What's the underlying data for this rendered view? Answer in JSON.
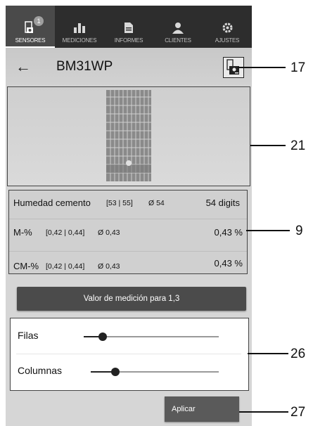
{
  "tabs": [
    {
      "label": "SENSORES",
      "icon": "sensor-icon",
      "badge": "1",
      "active": true
    },
    {
      "label": "MEDICIONES",
      "icon": "bar-chart-icon"
    },
    {
      "label": "INFORMES",
      "icon": "report-icon"
    },
    {
      "label": "CLIENTES",
      "icon": "clients-icon"
    },
    {
      "label": "AJUSTES",
      "icon": "gear-icon"
    }
  ],
  "header": {
    "back_icon": "←",
    "title": "BM31WP",
    "rec_icon": "record-icon"
  },
  "values": {
    "row1": {
      "label": "Humedad cemento",
      "range": "[53 | 55]",
      "avg": "Ø 54",
      "value": "54 digits"
    },
    "row2": {
      "label": "M-%",
      "range": "[0,42 | 0,44]",
      "avg": "Ø 0,43",
      "value": "0,43 %"
    },
    "row3": {
      "label": "CM-%",
      "range": "[0,42 | 0,44]",
      "avg": "Ø 0,43",
      "value": "0,43 %"
    }
  },
  "measure_button": "Valor de medición para 1,3",
  "sliders": {
    "rows": {
      "label": "Filas",
      "level": 0.14
    },
    "columns": {
      "label": "Columnas",
      "level": 0.19
    }
  },
  "apply_button": "Aplicar",
  "callouts": [
    "17",
    "21",
    "9",
    "26",
    "27"
  ]
}
